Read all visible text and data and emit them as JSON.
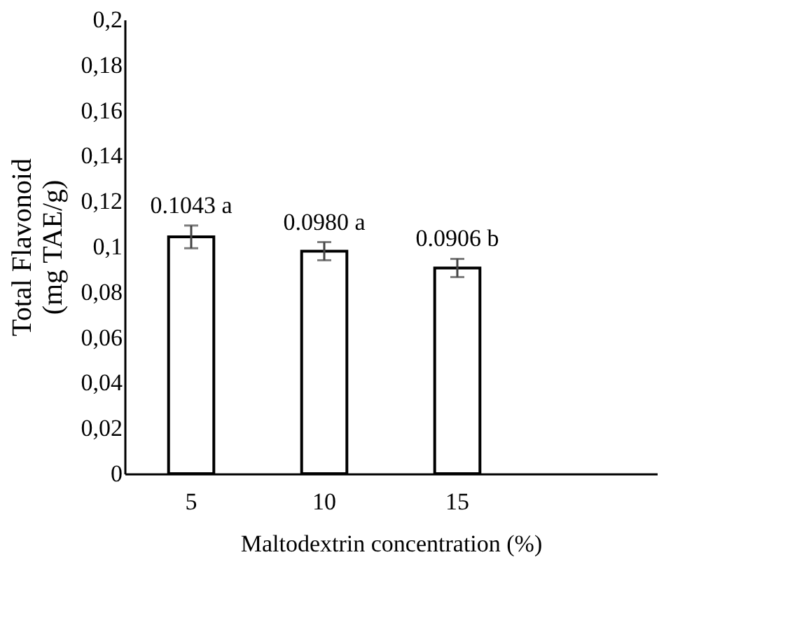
{
  "chart_data": {
    "type": "bar",
    "xlabel": "Maltodextrin concentration (%)",
    "ylabel": "Total Flavonoid\n(mg TAE/g)",
    "categories": [
      "5",
      "10",
      "15",
      null
    ],
    "values": [
      0.1043,
      0.098,
      0.0906,
      null
    ],
    "errors": [
      0.005,
      0.004,
      0.004,
      null
    ],
    "value_labels": [
      "0.1043 a",
      "0.0980 a",
      "0.0906 b",
      null
    ],
    "color": "#ffffff",
    "ylim": [
      0,
      0.2
    ],
    "yticks": [
      {
        "value": 0,
        "label": "0"
      },
      {
        "value": 0.02,
        "label": "0,02"
      },
      {
        "value": 0.04,
        "label": "0,04"
      },
      {
        "value": 0.06,
        "label": "0,06"
      },
      {
        "value": 0.08,
        "label": "0,08"
      },
      {
        "value": 0.1,
        "label": "0,1"
      },
      {
        "value": 0.12,
        "label": "0,12"
      },
      {
        "value": 0.14,
        "label": "0,14"
      },
      {
        "value": 0.16,
        "label": "0,16"
      },
      {
        "value": 0.18,
        "label": "0,18"
      },
      {
        "value": 0.2,
        "label": "0,2"
      }
    ],
    "grid": false
  }
}
